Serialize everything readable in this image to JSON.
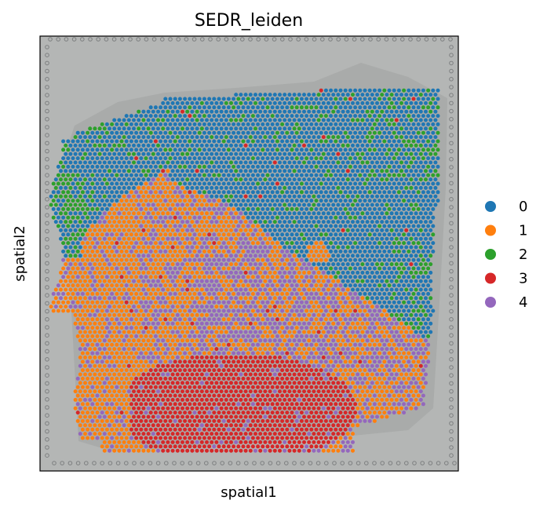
{
  "chart_data": {
    "type": "scatter",
    "title": "SEDR_leiden",
    "xlabel": "spatial1",
    "ylabel": "spatial2",
    "xticks": [],
    "yticks": [],
    "grid": false,
    "legend_position": "right",
    "background": "H&E tissue histology image",
    "series": [
      {
        "name": "0",
        "color": "#1f77b4",
        "region": "upper tissue area and right side"
      },
      {
        "name": "1",
        "color": "#ff7f0e",
        "region": "lower-left and middle area"
      },
      {
        "name": "2",
        "color": "#2ca02c",
        "region": "scattered along top and left edges"
      },
      {
        "name": "3",
        "color": "#d62728",
        "region": "bottom-center cluster"
      },
      {
        "name": "4",
        "color": "#9467bd",
        "region": "mixed with cluster 1 in middle band"
      }
    ]
  }
}
